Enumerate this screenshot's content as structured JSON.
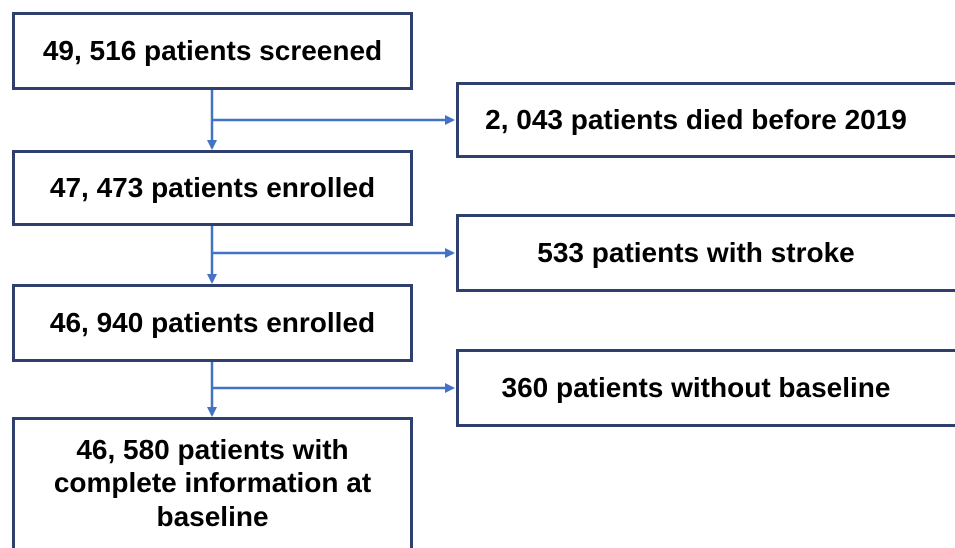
{
  "nodes": [
    {
      "label": "49, 516 patients screened"
    },
    {
      "label": "2, 043 patients died before 2019"
    },
    {
      "label": "47, 473 patients enrolled"
    },
    {
      "label": "533 patients with stroke"
    },
    {
      "label": "46, 940 patients enrolled"
    },
    {
      "label": "360 patients without baseline"
    },
    {
      "label": "46, 580 patients with complete information at baseline"
    }
  ]
}
